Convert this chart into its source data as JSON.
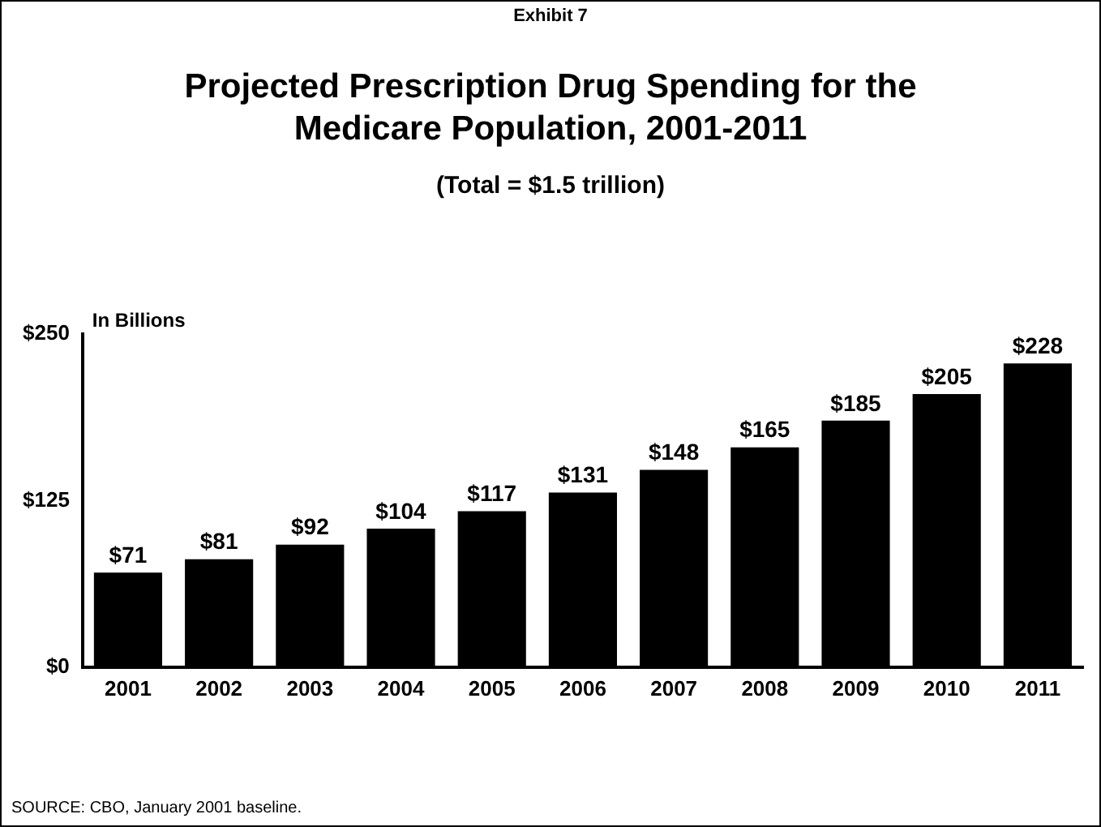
{
  "chart_data": {
    "type": "bar",
    "title": "Projected Prescription Drug Spending for the Medicare Population, 2001-2011",
    "subtitle": "(Total = $1.5 trillion)",
    "ylabel": "In Billions",
    "annotations": [
      "Exhibit 7",
      "SOURCE: CBO, January 2001 baseline."
    ],
    "categories": [
      "2001",
      "2002",
      "2003",
      "2004",
      "2005",
      "2006",
      "2007",
      "2008",
      "2009",
      "2010",
      "2011"
    ],
    "values": [
      71,
      81,
      92,
      104,
      117,
      131,
      148,
      165,
      185,
      205,
      228
    ],
    "value_labels": [
      "$71",
      "$81",
      "$92",
      "$104",
      "$117",
      "$131",
      "$148",
      "$165",
      "$185",
      "$205",
      "$228"
    ],
    "color": "#000000",
    "ylim": [
      0,
      250
    ],
    "yticks": [
      {
        "value": 0,
        "label": "$0"
      },
      {
        "value": 125,
        "label": "$125"
      },
      {
        "value": 250,
        "label": "$250"
      }
    ],
    "grid": false,
    "legend": false
  }
}
